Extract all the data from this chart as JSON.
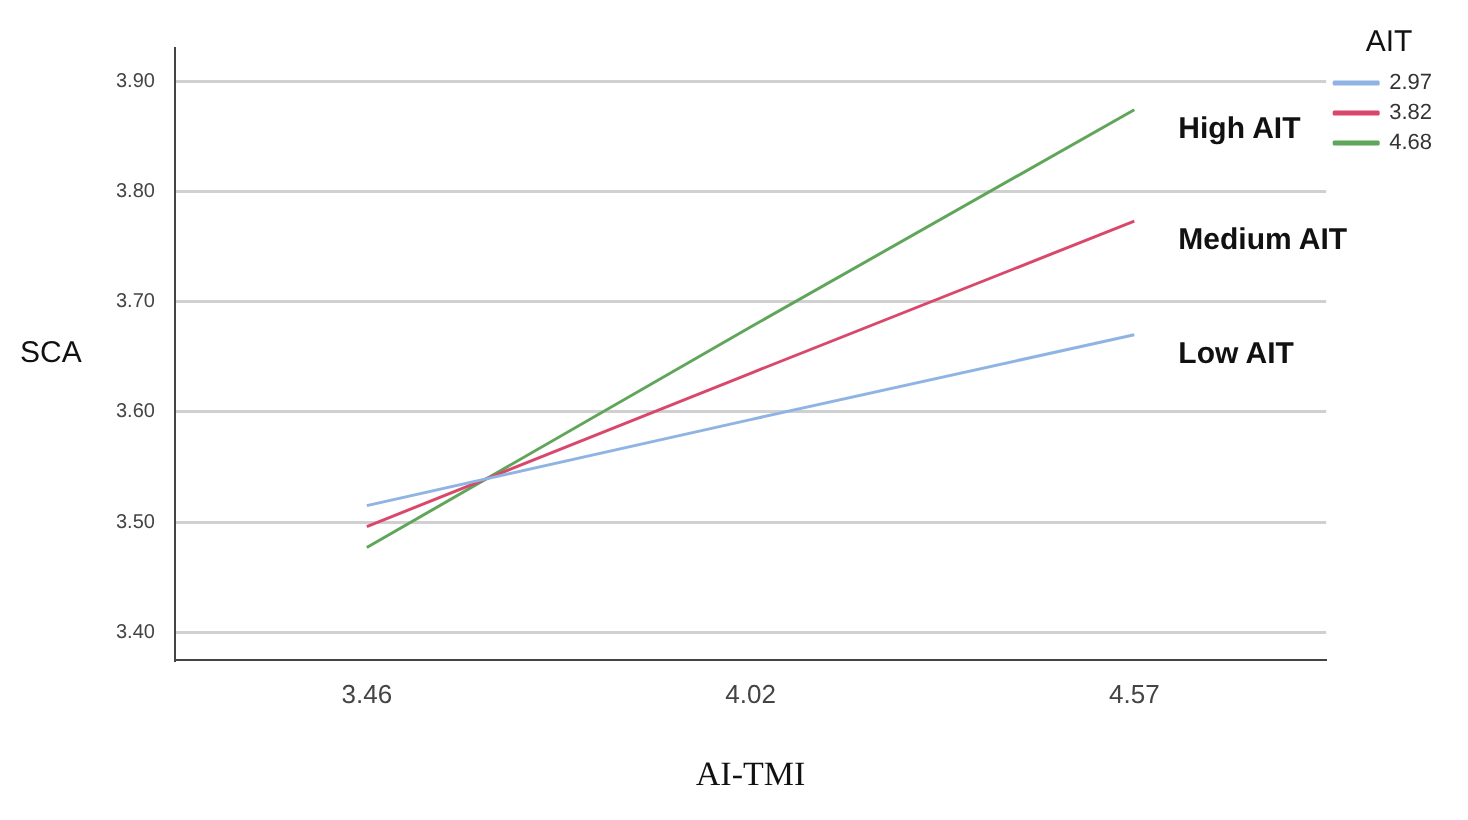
{
  "chart_data": {
    "type": "line",
    "xlabel": "AI-TMI",
    "ylabel": "SCA",
    "legend_title": "AIT",
    "categories": [
      "3.46",
      "4.02",
      "4.57"
    ],
    "series": [
      {
        "name": "2.97",
        "color": "#8fb4e3",
        "values": [
          3.515,
          3.593,
          3.67
        ]
      },
      {
        "name": "3.82",
        "color": "#d9476b",
        "values": [
          3.496,
          3.635,
          3.773
        ]
      },
      {
        "name": "4.68",
        "color": "#5fa55a",
        "values": [
          3.477,
          3.677,
          3.874
        ]
      }
    ],
    "ylim": [
      3.375,
      3.93
    ],
    "yticks": [
      {
        "value": 3.4,
        "label": "3.40"
      },
      {
        "value": 3.5,
        "label": "3.50"
      },
      {
        "value": 3.6,
        "label": "3.60"
      },
      {
        "value": 3.7,
        "label": "3.70"
      },
      {
        "value": 3.8,
        "label": "3.80"
      },
      {
        "value": 3.9,
        "label": "3.90"
      }
    ],
    "grid": "y",
    "legend": "top right",
    "marker": "none",
    "line_style": "solid",
    "annotations": [
      "High AIT",
      "Medium AIT",
      "Low AIT"
    ]
  }
}
